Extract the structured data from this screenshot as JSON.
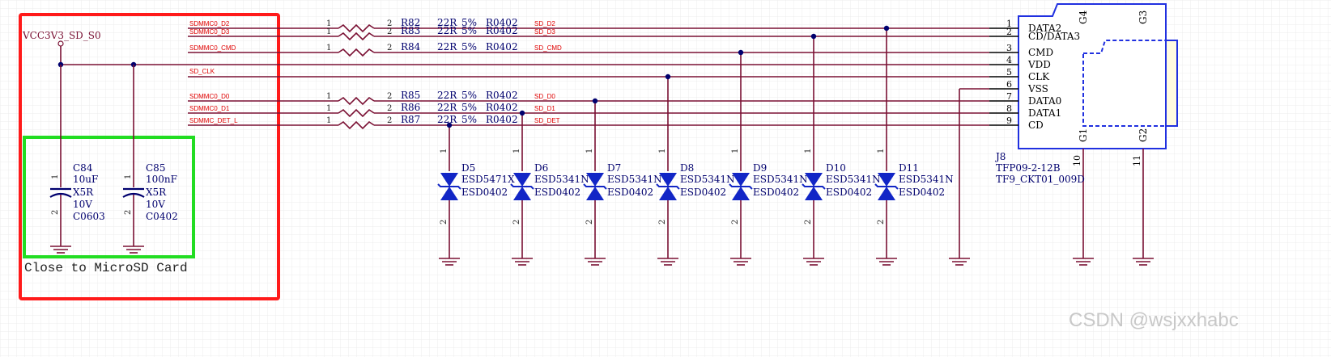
{
  "colors": {
    "wire": "#7a1033",
    "text_dark": "#00006e",
    "net_red": "#e00000",
    "diode": "#1226c6",
    "frame_red": "#ff1a1a",
    "frame_green": "#22dd22",
    "connector": "#2030e0",
    "grid": "#d9d9d9"
  },
  "power": {
    "net": "VCC3V3_SD_S0"
  },
  "resistors": [
    {
      "ref": "R82",
      "net_in": "SDMMC0_D2",
      "net_out": "SD_D2",
      "pin1": "1",
      "pin2": "2",
      "value": "22R",
      "tol": "5%",
      "package": "R0402"
    },
    {
      "ref": "R83",
      "net_in": "SDMMC0_D3",
      "net_out": "SD_D3",
      "pin1": "1",
      "pin2": "2",
      "value": "22R",
      "tol": "5%",
      "package": "R0402"
    },
    {
      "ref": "R84",
      "net_in": "SDMMC0_CMD",
      "net_out": "SD_CMD",
      "pin1": "1",
      "pin2": "2",
      "value": "22R",
      "tol": "5%",
      "package": "R0402"
    },
    {
      "ref": "R85",
      "net_in": "SDMMC0_D0",
      "net_out": "SD_D0",
      "pin1": "1",
      "pin2": "2",
      "value": "22R",
      "tol": "5%",
      "package": "R0402"
    },
    {
      "ref": "R86",
      "net_in": "SDMMC0_D1",
      "net_out": "SD_D1",
      "pin1": "1",
      "pin2": "2",
      "value": "22R",
      "tol": "5%",
      "package": "R0402"
    },
    {
      "ref": "R87",
      "net_in": "SDMMC_DET_L",
      "net_out": "SD_DET",
      "pin1": "1",
      "pin2": "2",
      "value": "22R",
      "tol": "5%",
      "package": "R0402"
    }
  ],
  "clk_net": "SD_CLK",
  "capacitors": [
    {
      "ref": "C84",
      "value": "10uF",
      "dielectric": "X5R",
      "voltage": "10V",
      "package": "C0603",
      "pin1": "1",
      "pin2": "2"
    },
    {
      "ref": "C85",
      "value": "100nF",
      "dielectric": "X5R",
      "voltage": "10V",
      "package": "C0402",
      "pin1": "1",
      "pin2": "2"
    }
  ],
  "cap_note": "Close to MicroSD Card",
  "diodes": [
    {
      "ref": "D5",
      "part": "ESD5471X",
      "package": "ESD0402",
      "pin1": "1",
      "pin2": "2"
    },
    {
      "ref": "D6",
      "part": "ESD5341N",
      "package": "ESD0402",
      "pin1": "1",
      "pin2": "2"
    },
    {
      "ref": "D7",
      "part": "ESD5341N",
      "package": "ESD0402",
      "pin1": "1",
      "pin2": "2"
    },
    {
      "ref": "D8",
      "part": "ESD5341N",
      "package": "ESD0402",
      "pin1": "1",
      "pin2": "2"
    },
    {
      "ref": "D9",
      "part": "ESD5341N",
      "package": "ESD0402",
      "pin1": "1",
      "pin2": "2"
    },
    {
      "ref": "D10",
      "part": "ESD5341N",
      "package": "ESD0402",
      "pin1": "1",
      "pin2": "2"
    },
    {
      "ref": "D11",
      "part": "ESD5341N",
      "package": "ESD0402",
      "pin1": "1",
      "pin2": "2"
    }
  ],
  "connector": {
    "ref": "J8",
    "part": "TFP09-2-12B",
    "footprint": "TF9_CKT01_009D",
    "pins": [
      {
        "num": "1",
        "name": "DATA2"
      },
      {
        "num": "2",
        "name": "CD/DATA3"
      },
      {
        "num": "3",
        "name": "CMD"
      },
      {
        "num": "4",
        "name": "VDD"
      },
      {
        "num": "5",
        "name": "CLK"
      },
      {
        "num": "6",
        "name": "VSS"
      },
      {
        "num": "7",
        "name": "DATA0"
      },
      {
        "num": "8",
        "name": "DATA1"
      },
      {
        "num": "9",
        "name": "CD"
      }
    ],
    "shield_pins": [
      {
        "name": "G4",
        "num": ""
      },
      {
        "name": "G3",
        "num": ""
      },
      {
        "name": "G1",
        "num": "10"
      },
      {
        "name": "G2",
        "num": "11"
      }
    ]
  },
  "watermark": "CSDN @wsjxxhabc"
}
